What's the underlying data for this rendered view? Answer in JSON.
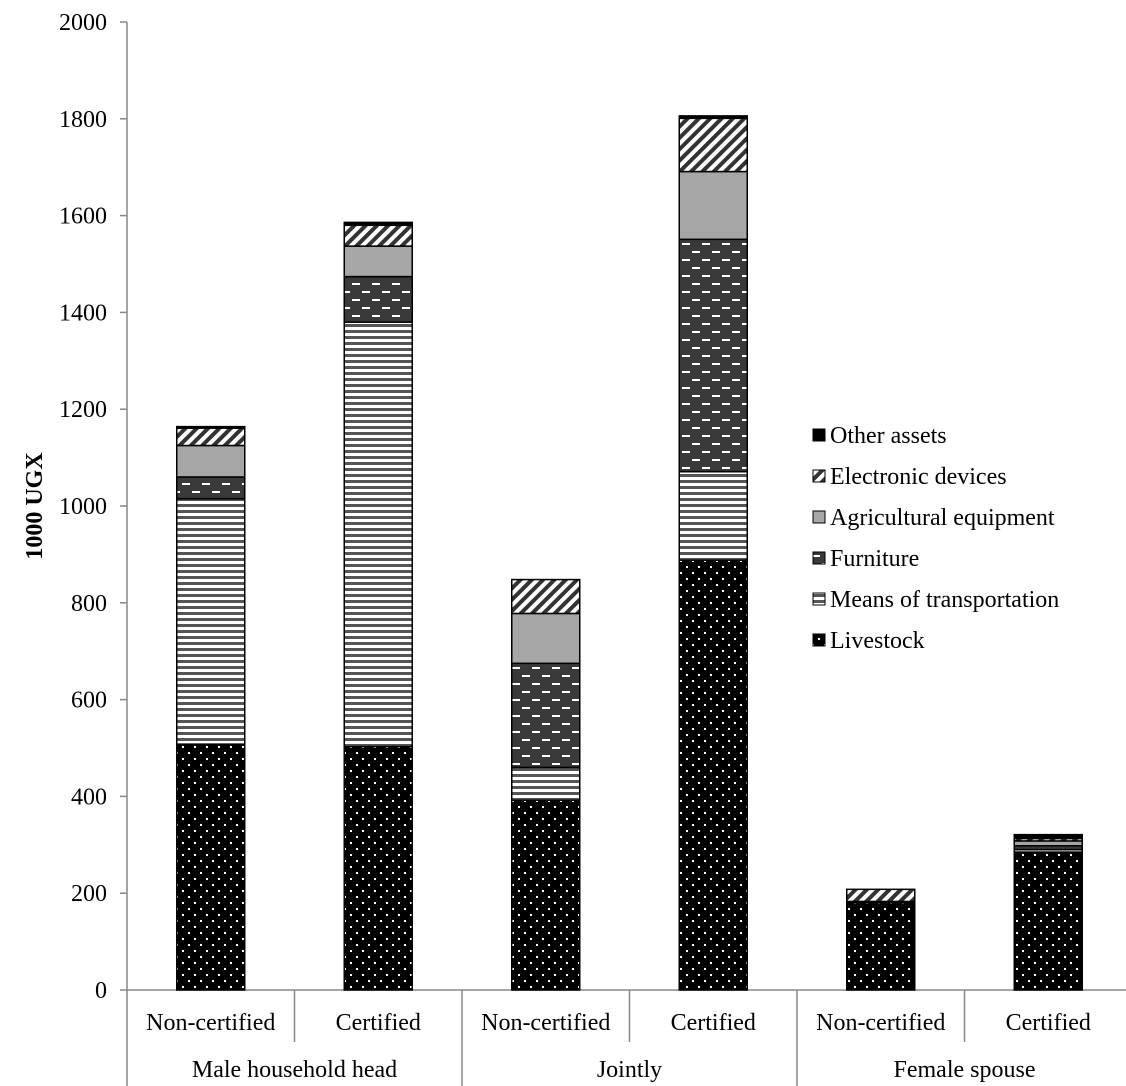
{
  "chart_data": {
    "type": "bar",
    "stacked": true,
    "ylabel": "1000 UGX",
    "ylim": [
      0,
      2000
    ],
    "yticks": [
      0,
      200,
      400,
      600,
      800,
      1000,
      1200,
      1400,
      1600,
      1800,
      2000
    ],
    "grid": false,
    "legend_position": "right",
    "groups": [
      {
        "label": "Male household head",
        "categories": [
          "Non-certified",
          "Certified"
        ]
      },
      {
        "label": "Jointly",
        "categories": [
          "Non-certified",
          "Certified"
        ]
      },
      {
        "label": "Female spouse",
        "categories": [
          "Non-certified",
          "Certified"
        ]
      }
    ],
    "categories": [
      "Non-certified",
      "Certified",
      "Non-certified",
      "Certified",
      "Non-certified",
      "Certified"
    ],
    "series": [
      {
        "name": "Livestock",
        "pattern": "dots",
        "values": [
          508,
          503,
          392,
          888,
          180,
          285
        ]
      },
      {
        "name": "Means of transportation",
        "pattern": "horizontal-lines",
        "values": [
          507,
          877,
          68,
          183,
          2,
          5
        ]
      },
      {
        "name": "Furniture",
        "pattern": "dashes",
        "values": [
          45,
          94,
          215,
          480,
          1,
          8
        ]
      },
      {
        "name": "Agricultural equipment",
        "pattern": "gray",
        "values": [
          65,
          63,
          103,
          140,
          0,
          10
        ]
      },
      {
        "name": "Electronic devices",
        "pattern": "diagonal",
        "values": [
          36,
          43,
          70,
          110,
          25,
          5
        ]
      },
      {
        "name": "Other assets",
        "pattern": "black",
        "values": [
          3,
          6,
          0,
          5,
          0,
          8
        ]
      }
    ],
    "legend_order": [
      "Other assets",
      "Electronic devices",
      "Agricultural equipment",
      "Furniture",
      "Means of transportation",
      "Livestock"
    ]
  }
}
